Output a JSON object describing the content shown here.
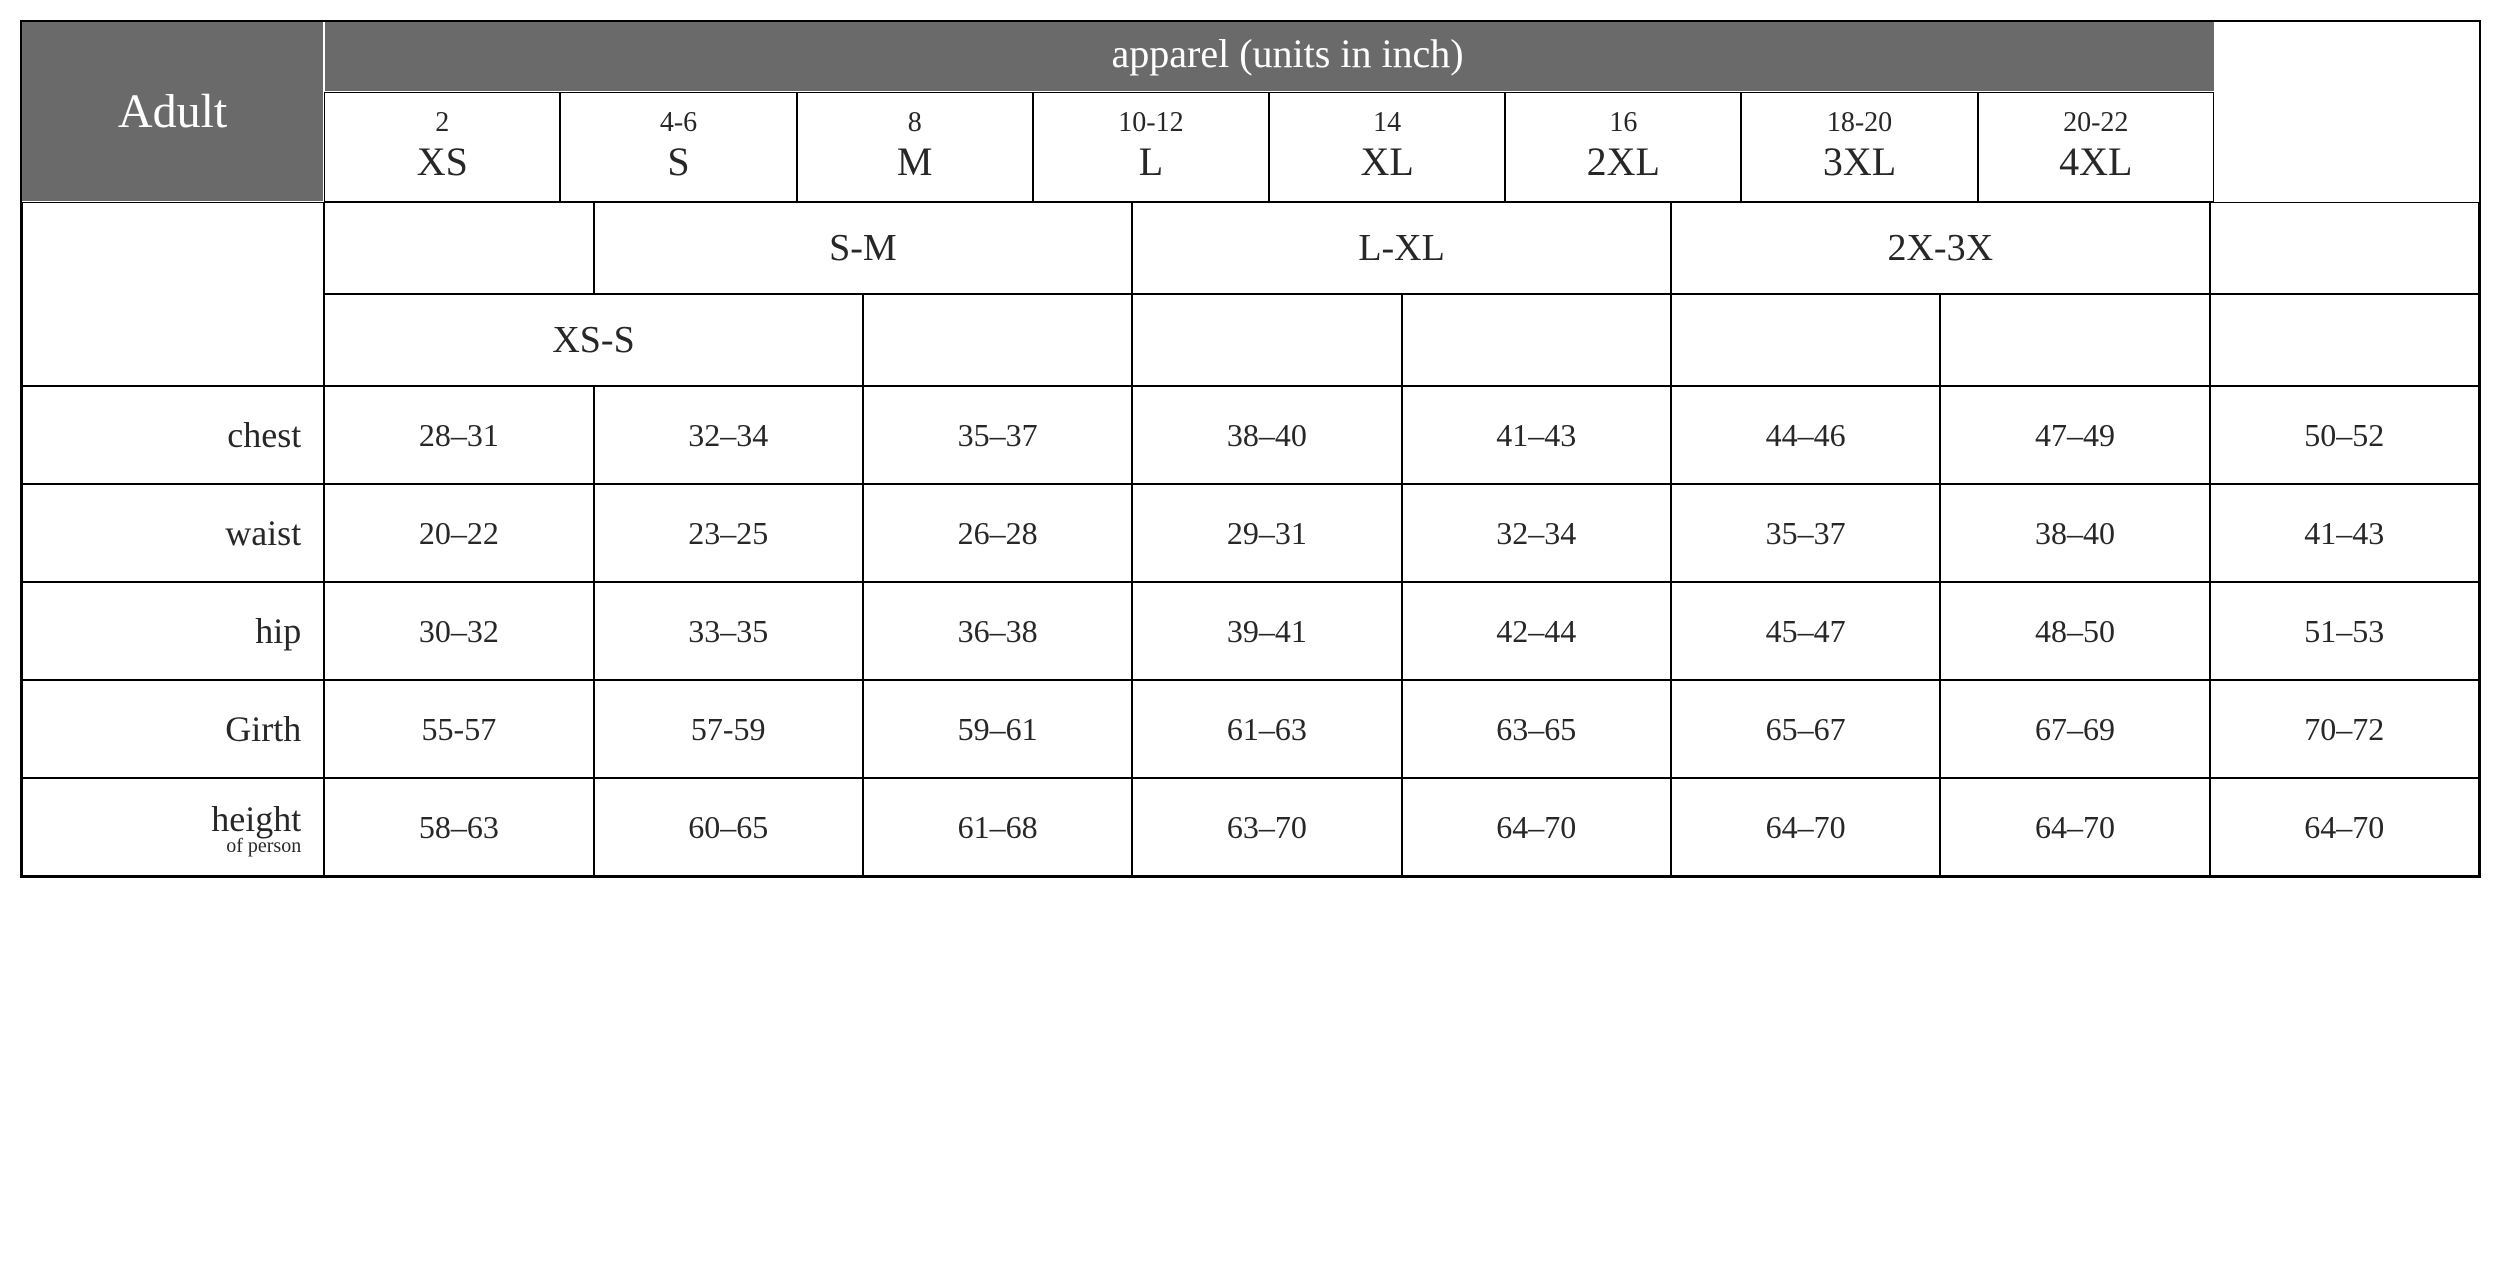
{
  "colors": {
    "header_bg": "#6a6a6a",
    "header_text": "#ffffff",
    "border": "#000000",
    "text": "#272727",
    "background": "#ffffff"
  },
  "font": {
    "family": "Palatino Linotype, Book Antiqua, Palatino, Georgia, serif",
    "title_size_pt": 36,
    "apparel_size_pt": 30,
    "size_num_pt": 21,
    "size_code_pt": 30,
    "range_code_pt": 28,
    "label_pt": 27,
    "value_pt": 24,
    "sublabel_pt": 15
  },
  "header": {
    "title": "Adult",
    "apparel_label": "apparel  (units in inch)"
  },
  "sizes": [
    {
      "num": "2",
      "code": "XS"
    },
    {
      "num": "4-6",
      "code": "S"
    },
    {
      "num": "8",
      "code": "M"
    },
    {
      "num": "10-12",
      "code": "L"
    },
    {
      "num": "14",
      "code": "XL"
    },
    {
      "num": "16",
      "code": "2XL"
    },
    {
      "num": "18-20",
      "code": "3XL"
    },
    {
      "num": "20-22",
      "code": "4XL"
    }
  ],
  "range_row_1": {
    "sm": "S-M",
    "lxl": "L-XL",
    "x2x3": "2X-3X"
  },
  "range_row_2": {
    "xss": "XS-S"
  },
  "measurements": [
    {
      "label": "chest",
      "sublabel": "",
      "values": [
        "28–31",
        "32–34",
        "35–37",
        "38–40",
        "41–43",
        "44–46",
        "47–49",
        "50–52"
      ]
    },
    {
      "label": "waist",
      "sublabel": "",
      "values": [
        "20–22",
        "23–25",
        "26–28",
        "29–31",
        "32–34",
        "35–37",
        "38–40",
        "41–43"
      ]
    },
    {
      "label": "hip",
      "sublabel": "",
      "values": [
        "30–32",
        "33–35",
        "36–38",
        "39–41",
        "42–44",
        "45–47",
        "48–50",
        "51–53"
      ]
    },
    {
      "label": "Girth",
      "sublabel": "",
      "values": [
        "55-57",
        "57-59",
        "59–61",
        "61–63",
        "63–65",
        "65–67",
        "67–69",
        "70–72"
      ]
    },
    {
      "label": "height",
      "sublabel": "of person",
      "values": [
        "58–63",
        "60–65",
        "61–68",
        "63–70",
        "64–70",
        "64–70",
        "64–70",
        "64–70"
      ]
    }
  ]
}
